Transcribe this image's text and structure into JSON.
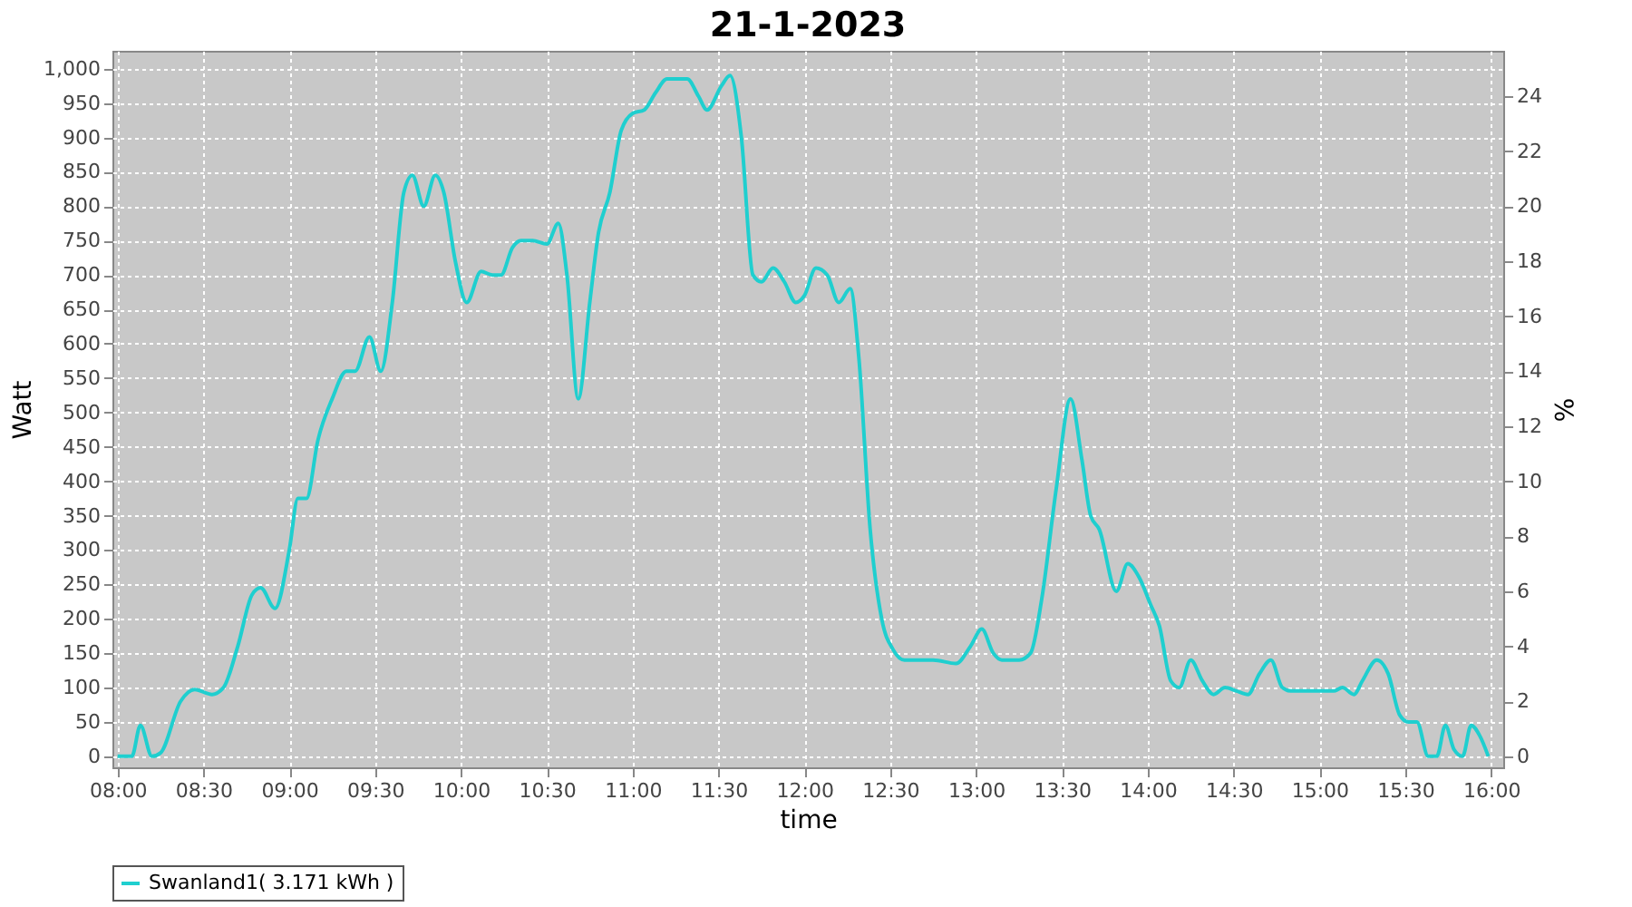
{
  "chart_data": {
    "type": "line",
    "title": "21-1-2023",
    "xlabel": "time",
    "ylabel": "Watt",
    "y2label": "%",
    "xlim": [
      7.97,
      16.07
    ],
    "ylim": [
      -16,
      1026
    ],
    "y2lim": [
      -0.4,
      25.65
    ],
    "xticks": [
      {
        "value": 8,
        "label": "08:00"
      },
      {
        "value": 8.5,
        "label": "08:30"
      },
      {
        "value": 9,
        "label": "09:00"
      },
      {
        "value": 9.5,
        "label": "09:30"
      },
      {
        "value": 10,
        "label": "10:00"
      },
      {
        "value": 10.5,
        "label": "10:30"
      },
      {
        "value": 11,
        "label": "11:00"
      },
      {
        "value": 11.5,
        "label": "11:30"
      },
      {
        "value": 12,
        "label": "12:00"
      },
      {
        "value": 12.5,
        "label": "12:30"
      },
      {
        "value": 13,
        "label": "13:00"
      },
      {
        "value": 13.5,
        "label": "13:30"
      },
      {
        "value": 14,
        "label": "14:00"
      },
      {
        "value": 14.5,
        "label": "14:30"
      },
      {
        "value": 15,
        "label": "15:00"
      },
      {
        "value": 15.5,
        "label": "15:30"
      },
      {
        "value": 16,
        "label": "16:00"
      }
    ],
    "yticks": [
      0,
      50,
      100,
      150,
      200,
      250,
      300,
      350,
      400,
      450,
      500,
      550,
      600,
      650,
      700,
      750,
      800,
      850,
      900,
      950,
      {
        "value": 1000,
        "label": "1,000"
      }
    ],
    "y2ticks": [
      0,
      2,
      4,
      6,
      8,
      10,
      12,
      14,
      16,
      18,
      20,
      22,
      24
    ],
    "grid": true,
    "legend": "bottom",
    "marker": "none",
    "line_style": "solid",
    "series": [
      {
        "name": "Swanland1( 3.171 kWh )",
        "color": "#1fcfcf",
        "x": [
          8.0,
          8.083,
          8.133,
          8.2,
          8.25,
          8.367,
          8.45,
          8.55,
          8.617,
          8.7,
          8.783,
          8.833,
          8.917,
          9.0,
          9.05,
          9.1,
          9.167,
          9.25,
          9.333,
          9.383,
          9.467,
          9.533,
          9.6,
          9.667,
          9.717,
          9.783,
          9.85,
          9.9,
          9.967,
          10.033,
          10.117,
          10.183,
          10.233,
          10.3,
          10.35,
          10.417,
          10.5,
          10.567,
          10.617,
          10.683,
          10.75,
          10.8,
          10.867,
          10.933,
          11.0,
          11.067,
          11.133,
          11.2,
          11.25,
          11.317,
          11.383,
          11.433,
          11.517,
          11.567,
          11.633,
          11.7,
          11.75,
          11.817,
          11.883,
          11.95,
          12.0,
          12.067,
          12.133,
          12.2,
          12.267,
          12.317,
          12.383,
          12.45,
          12.517,
          12.583,
          12.667,
          12.75,
          12.883,
          12.967,
          13.033,
          13.1,
          13.15,
          13.25,
          13.317,
          13.383,
          13.467,
          13.55,
          13.617,
          13.667,
          13.717,
          13.817,
          13.883,
          13.95,
          14.017,
          14.067,
          14.133,
          14.183,
          14.25,
          14.317,
          14.383,
          14.45,
          14.517,
          14.583,
          14.65,
          14.717,
          14.783,
          14.833,
          14.967,
          15.083,
          15.133,
          15.2,
          15.25,
          15.333,
          15.4,
          15.467,
          15.517,
          15.567,
          15.633,
          15.683,
          15.733,
          15.783,
          15.833,
          15.883,
          15.933,
          15.983
        ],
        "values": [
          0,
          0,
          45,
          0,
          5,
          80,
          97,
          90,
          100,
          160,
          235,
          245,
          215,
          300,
          375,
          375,
          460,
          520,
          560,
          560,
          610,
          560,
          660,
          820,
          845,
          800,
          845,
          820,
          720,
          660,
          705,
          700,
          700,
          740,
          750,
          750,
          745,
          775,
          700,
          520,
          660,
          760,
          820,
          910,
          935,
          940,
          965,
          985,
          985,
          985,
          960,
          940,
          975,
          990,
          900,
          700,
          690,
          710,
          690,
          660,
          670,
          710,
          700,
          660,
          680,
          580,
          330,
          200,
          155,
          140,
          140,
          140,
          135,
          160,
          185,
          150,
          140,
          140,
          150,
          230,
          390,
          520,
          430,
          350,
          330,
          240,
          280,
          260,
          220,
          190,
          110,
          100,
          140,
          110,
          90,
          100,
          95,
          90,
          120,
          140,
          100,
          95,
          95,
          95,
          100,
          90,
          110,
          140,
          120,
          60,
          50,
          50,
          0,
          0,
          45,
          10,
          0,
          45,
          30,
          0
        ]
      }
    ]
  }
}
